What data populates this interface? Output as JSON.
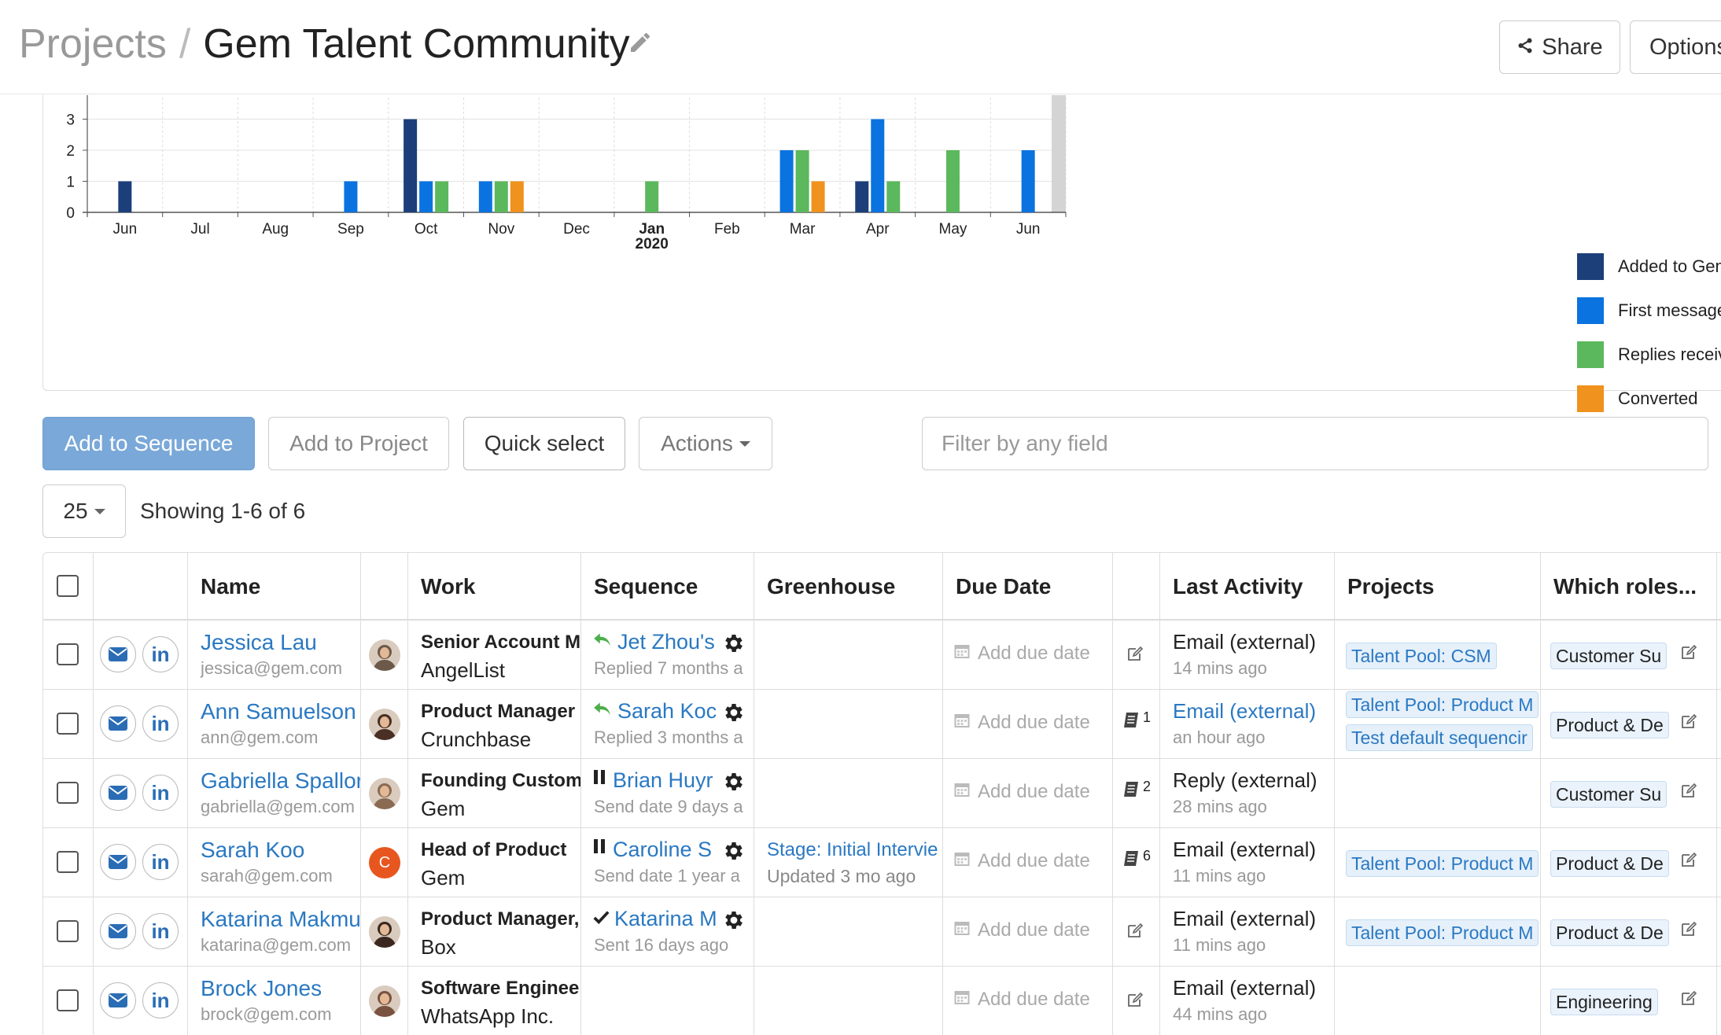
{
  "header": {
    "breadcrumb_root": "Projects",
    "breadcrumb_sep": "/",
    "title": "Gem Talent Community",
    "share_label": "Share",
    "options_label": "Options"
  },
  "chart_data": {
    "type": "bar",
    "categories": [
      "Jun",
      "Jul",
      "Aug",
      "Sep",
      "Oct",
      "Nov",
      "Dec",
      "Jan",
      "Feb",
      "Mar",
      "Apr",
      "May",
      "Jun"
    ],
    "year_label": "2020",
    "ylim": [
      0,
      4
    ],
    "yticks": [
      0,
      1,
      2,
      3,
      4
    ],
    "series": [
      {
        "name": "Added to Gem",
        "color": "#1c3f7a",
        "values": [
          1,
          0,
          0,
          0,
          3,
          0,
          0,
          0,
          0,
          0,
          1,
          0,
          0
        ]
      },
      {
        "name": "First messages",
        "color": "#0a73e0",
        "values": [
          0,
          0,
          0,
          1,
          1,
          1,
          0,
          0,
          0,
          2,
          3,
          0,
          2
        ]
      },
      {
        "name": "Replies received",
        "color": "#5cb85c",
        "values": [
          0,
          0,
          0,
          0,
          1,
          1,
          0,
          1,
          0,
          2,
          1,
          2,
          0
        ]
      },
      {
        "name": "Converted",
        "color": "#f0921e",
        "values": [
          0,
          0,
          0,
          0,
          0,
          1,
          0,
          0,
          0,
          1,
          0,
          0,
          0
        ]
      }
    ],
    "legend_position": "right",
    "grid": true
  },
  "toolbar": {
    "add_to_sequence": "Add to Sequence",
    "add_to_project": "Add to Project",
    "quick_select": "Quick select",
    "actions": "Actions",
    "filter_placeholder": "Filter by any field",
    "page_size": "25",
    "showing": "Showing 1-6 of 6"
  },
  "table": {
    "columns": {
      "name": "Name",
      "work": "Work",
      "sequence": "Sequence",
      "greenhouse": "Greenhouse",
      "due_date": "Due Date",
      "last_activity": "Last Activity",
      "projects": "Projects",
      "roles": "Which roles..."
    },
    "add_due_date": "Add due date",
    "rows": [
      {
        "name": "Jessica Lau",
        "email": "jessica@gem.com",
        "avatar_color": "#6b5a4a",
        "title": "Senior Account Ma",
        "company": "AngelList",
        "seq_icon": "reply-icon",
        "sequence": "Jet Zhou's",
        "seq_status": "Replied 7 months a",
        "greenhouse": "",
        "greenhouse_sub": "",
        "note": "",
        "activity": "Email (external)",
        "activity_link": false,
        "activity_time": "14 mins ago",
        "projects": [
          "Talent Pool: CSM"
        ],
        "role": "Customer Su"
      },
      {
        "name": "Ann Samuelson",
        "email": "ann@gem.com",
        "avatar_color": "#4a2f24",
        "title": "Product Manager",
        "company": "Crunchbase",
        "seq_icon": "reply-icon",
        "sequence": "Sarah Koc",
        "seq_status": "Replied 3 months a",
        "greenhouse": "",
        "greenhouse_sub": "",
        "note": "1",
        "activity": "Email (external)",
        "activity_link": true,
        "activity_time": "an hour ago",
        "projects": [
          "Talent Pool: Product M",
          "Test default sequencir"
        ],
        "role": "Product & De"
      },
      {
        "name": "Gabriella Spallor",
        "email": "gabriella@gem.com",
        "avatar_color": "#8a6a52",
        "title": "Founding Custome",
        "company": "Gem",
        "seq_icon": "pause-icon",
        "sequence": "Brian Huyr",
        "seq_status": "Send date 9 days a",
        "greenhouse": "",
        "greenhouse_sub": "",
        "note": "2",
        "activity": "Reply (external)",
        "activity_link": false,
        "activity_time": "28 mins ago",
        "projects": [],
        "role": "Customer Su"
      },
      {
        "name": "Sarah Koo",
        "email": "sarah@gem.com",
        "avatar_color": "#e8561f",
        "avatar_letter": "C",
        "title": "Head of Product",
        "company": "Gem",
        "seq_icon": "pause-icon",
        "sequence": "Caroline S",
        "seq_status": "Send date 1 year a",
        "greenhouse": "Stage: Initial Intervie",
        "greenhouse_sub": "Updated 3 mo ago",
        "note": "6",
        "activity": "Email (external)",
        "activity_link": false,
        "activity_time": "11 mins ago",
        "projects": [
          "Talent Pool: Product M"
        ],
        "role": "Product & De"
      },
      {
        "name": "Katarina Makmu",
        "email": "katarina@gem.com",
        "avatar_color": "#3a2820",
        "title": "Product Manager,",
        "company": "Box",
        "seq_icon": "check-icon",
        "sequence": "Katarina M",
        "seq_status": "Sent 16 days ago",
        "greenhouse": "",
        "greenhouse_sub": "",
        "note": "",
        "activity": "Email (external)",
        "activity_link": false,
        "activity_time": "11 mins ago",
        "projects": [
          "Talent Pool: Product M"
        ],
        "role": "Product & De"
      },
      {
        "name": "Brock Jones",
        "email": "brock@gem.com",
        "avatar_color": "#7a5240",
        "title": "Software Engineer",
        "company": "WhatsApp Inc.",
        "seq_icon": "",
        "sequence": "",
        "seq_status": "",
        "greenhouse": "",
        "greenhouse_sub": "",
        "note": "",
        "activity": "Email (external)",
        "activity_link": false,
        "activity_time": "44 mins ago",
        "projects": [],
        "role": "Engineering"
      }
    ]
  }
}
